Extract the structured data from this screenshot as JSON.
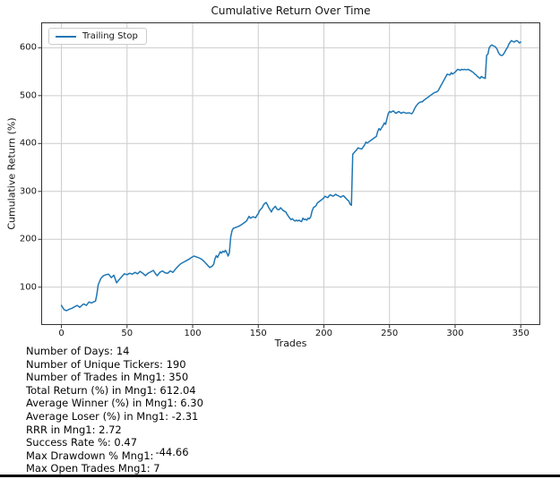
{
  "chart_data": {
    "type": "line",
    "title": "Cumulative Return Over Time",
    "xlabel": "Trades",
    "ylabel": "Cumulative Return (%)",
    "grid": true,
    "legend": {
      "position": "upper-left",
      "entries": [
        {
          "label": "Trailing Stop",
          "color": "#1f77b4"
        }
      ]
    },
    "x_ticks": [
      0,
      50,
      100,
      150,
      200,
      250,
      300,
      350
    ],
    "y_ticks": [
      100,
      200,
      300,
      400,
      500,
      600
    ],
    "xlim": [
      -15.4,
      364.9
    ],
    "ylim": [
      21,
      653
    ],
    "series": [
      {
        "name": "Trailing Stop",
        "color": "#1f77b4",
        "points": [
          [
            0,
            62
          ],
          [
            2,
            53
          ],
          [
            4,
            51
          ],
          [
            6,
            54
          ],
          [
            8,
            56
          ],
          [
            10,
            59
          ],
          [
            12,
            62
          ],
          [
            14,
            58
          ],
          [
            16,
            63
          ],
          [
            17,
            65
          ],
          [
            19,
            62
          ],
          [
            21,
            69
          ],
          [
            23,
            67
          ],
          [
            25,
            70
          ],
          [
            26,
            71
          ],
          [
            27,
            85
          ],
          [
            28,
            105
          ],
          [
            30,
            118
          ],
          [
            32,
            124
          ],
          [
            34,
            126
          ],
          [
            36,
            127
          ],
          [
            38,
            120
          ],
          [
            40,
            125
          ],
          [
            42,
            109
          ],
          [
            44,
            116
          ],
          [
            46,
            122
          ],
          [
            48,
            128
          ],
          [
            50,
            126
          ],
          [
            52,
            129
          ],
          [
            54,
            127
          ],
          [
            56,
            131
          ],
          [
            58,
            128
          ],
          [
            60,
            133
          ],
          [
            62,
            129
          ],
          [
            64,
            124
          ],
          [
            66,
            129
          ],
          [
            68,
            132
          ],
          [
            70,
            135
          ],
          [
            72,
            127
          ],
          [
            73,
            124
          ],
          [
            75,
            131
          ],
          [
            77,
            134
          ],
          [
            79,
            130
          ],
          [
            81,
            129
          ],
          [
            83,
            134
          ],
          [
            85,
            131
          ],
          [
            87,
            138
          ],
          [
            89,
            144
          ],
          [
            91,
            149
          ],
          [
            93,
            152
          ],
          [
            95,
            155
          ],
          [
            97,
            158
          ],
          [
            99,
            162
          ],
          [
            101,
            165
          ],
          [
            103,
            163
          ],
          [
            105,
            161
          ],
          [
            107,
            158
          ],
          [
            109,
            153
          ],
          [
            111,
            147
          ],
          [
            113,
            141
          ],
          [
            115,
            144
          ],
          [
            116,
            148
          ],
          [
            117,
            159
          ],
          [
            118,
            166
          ],
          [
            119,
            162
          ],
          [
            120,
            168
          ],
          [
            121,
            174
          ],
          [
            122,
            171
          ],
          [
            123,
            175
          ],
          [
            124,
            173
          ],
          [
            125,
            177
          ],
          [
            126,
            172
          ],
          [
            127,
            165
          ],
          [
            128,
            172
          ],
          [
            129,
            205
          ],
          [
            130,
            218
          ],
          [
            131,
            223
          ],
          [
            133,
            225
          ],
          [
            135,
            227
          ],
          [
            137,
            230
          ],
          [
            139,
            234
          ],
          [
            141,
            238
          ],
          [
            143,
            248
          ],
          [
            144,
            244
          ],
          [
            146,
            247
          ],
          [
            148,
            245
          ],
          [
            149,
            250
          ],
          [
            150,
            254
          ],
          [
            151,
            260
          ],
          [
            152,
            263
          ],
          [
            153,
            266
          ],
          [
            154,
            272
          ],
          [
            155,
            275
          ],
          [
            156,
            277
          ],
          [
            157,
            272
          ],
          [
            158,
            266
          ],
          [
            159,
            262
          ],
          [
            160,
            257
          ],
          [
            161,
            263
          ],
          [
            162,
            266
          ],
          [
            163,
            269
          ],
          [
            164,
            264
          ],
          [
            165,
            262
          ],
          [
            166,
            262
          ],
          [
            167,
            266
          ],
          [
            168,
            263
          ],
          [
            169,
            260
          ],
          [
            171,
            257
          ],
          [
            172,
            252
          ],
          [
            173,
            248
          ],
          [
            174,
            244
          ],
          [
            175,
            241
          ],
          [
            176,
            243
          ],
          [
            177,
            240
          ],
          [
            178,
            238
          ],
          [
            179,
            240
          ],
          [
            180,
            238
          ],
          [
            181,
            240
          ],
          [
            182,
            238
          ],
          [
            183,
            237
          ],
          [
            184,
            244
          ],
          [
            185,
            241
          ],
          [
            186,
            242
          ],
          [
            187,
            240
          ],
          [
            188,
            244
          ],
          [
            189,
            243
          ],
          [
            190,
            247
          ],
          [
            191,
            259
          ],
          [
            192,
            266
          ],
          [
            193,
            268
          ],
          [
            194,
            270
          ],
          [
            195,
            276
          ],
          [
            196,
            278
          ],
          [
            197,
            280
          ],
          [
            198,
            282
          ],
          [
            199,
            284
          ],
          [
            200,
            287
          ],
          [
            201,
            290
          ],
          [
            202,
            288
          ],
          [
            203,
            287
          ],
          [
            204,
            291
          ],
          [
            205,
            293
          ],
          [
            206,
            291
          ],
          [
            207,
            290
          ],
          [
            208,
            292
          ],
          [
            209,
            294
          ],
          [
            210,
            292
          ],
          [
            211,
            291
          ],
          [
            212,
            289
          ],
          [
            213,
            288
          ],
          [
            214,
            290
          ],
          [
            215,
            291
          ],
          [
            216,
            288
          ],
          [
            217,
            285
          ],
          [
            218,
            282
          ],
          [
            219,
            280
          ],
          [
            220,
            273
          ],
          [
            221,
            271
          ],
          [
            222,
            378
          ],
          [
            223,
            381
          ],
          [
            224,
            384
          ],
          [
            225,
            387
          ],
          [
            226,
            391
          ],
          [
            227,
            390
          ],
          [
            228,
            389
          ],
          [
            229,
            389
          ],
          [
            230,
            393
          ],
          [
            231,
            397
          ],
          [
            232,
            403
          ],
          [
            233,
            401
          ],
          [
            234,
            403
          ],
          [
            235,
            405
          ],
          [
            236,
            407
          ],
          [
            237,
            409
          ],
          [
            238,
            411
          ],
          [
            239,
            413
          ],
          [
            240,
            415
          ],
          [
            241,
            425
          ],
          [
            242,
            431
          ],
          [
            243,
            428
          ],
          [
            244,
            433
          ],
          [
            245,
            437
          ],
          [
            246,
            443
          ],
          [
            247,
            440
          ],
          [
            248,
            451
          ],
          [
            249,
            462
          ],
          [
            250,
            467
          ],
          [
            251,
            465
          ],
          [
            252,
            467
          ],
          [
            253,
            468
          ],
          [
            254,
            465
          ],
          [
            255,
            463
          ],
          [
            256,
            465
          ],
          [
            257,
            467
          ],
          [
            258,
            465
          ],
          [
            259,
            463
          ],
          [
            260,
            465
          ],
          [
            261,
            465
          ],
          [
            262,
            464
          ],
          [
            263,
            463
          ],
          [
            264,
            464
          ],
          [
            265,
            464
          ],
          [
            266,
            463
          ],
          [
            267,
            462
          ],
          [
            268,
            466
          ],
          [
            269,
            472
          ],
          [
            270,
            477
          ],
          [
            271,
            481
          ],
          [
            272,
            484
          ],
          [
            273,
            486
          ],
          [
            274,
            487
          ],
          [
            275,
            487
          ],
          [
            276,
            490
          ],
          [
            277,
            492
          ],
          [
            278,
            494
          ],
          [
            279,
            496
          ],
          [
            280,
            498
          ],
          [
            281,
            500
          ],
          [
            282,
            502
          ],
          [
            283,
            504
          ],
          [
            284,
            506
          ],
          [
            285,
            507
          ],
          [
            286,
            508
          ],
          [
            287,
            510
          ],
          [
            288,
            515
          ],
          [
            289,
            520
          ],
          [
            290,
            525
          ],
          [
            291,
            530
          ],
          [
            292,
            535
          ],
          [
            293,
            540
          ],
          [
            294,
            545
          ],
          [
            295,
            544
          ],
          [
            296,
            543
          ],
          [
            297,
            548
          ],
          [
            298,
            545
          ],
          [
            299,
            547
          ],
          [
            300,
            549
          ],
          [
            301,
            552
          ],
          [
            302,
            555
          ],
          [
            303,
            554
          ],
          [
            304,
            553
          ],
          [
            305,
            555
          ],
          [
            306,
            554
          ],
          [
            307,
            555
          ],
          [
            308,
            554
          ],
          [
            309,
            554
          ],
          [
            310,
            555
          ],
          [
            311,
            553
          ],
          [
            312,
            552
          ],
          [
            313,
            550
          ],
          [
            314,
            548
          ],
          [
            315,
            545
          ],
          [
            316,
            543
          ],
          [
            317,
            540
          ],
          [
            318,
            538
          ],
          [
            319,
            536
          ],
          [
            320,
            540
          ],
          [
            321,
            538
          ],
          [
            322,
            537
          ],
          [
            323,
            536
          ],
          [
            324,
            584
          ],
          [
            325,
            587
          ],
          [
            326,
            600
          ],
          [
            327,
            604
          ],
          [
            328,
            606
          ],
          [
            329,
            604
          ],
          [
            330,
            603
          ],
          [
            331,
            601
          ],
          [
            332,
            597
          ],
          [
            333,
            590
          ],
          [
            334,
            586
          ],
          [
            335,
            584
          ],
          [
            336,
            584
          ],
          [
            337,
            587
          ],
          [
            338,
            592
          ],
          [
            339,
            597
          ],
          [
            340,
            601
          ],
          [
            341,
            608
          ],
          [
            342,
            612
          ],
          [
            343,
            615
          ],
          [
            344,
            613
          ],
          [
            345,
            612
          ],
          [
            346,
            614
          ],
          [
            347,
            615
          ],
          [
            348,
            613
          ],
          [
            349,
            610
          ],
          [
            350,
            612
          ]
        ]
      }
    ]
  },
  "stats": {
    "lines": [
      {
        "text": "Number of Days: 14"
      },
      {
        "text": "Number of Unique Tickers: 190"
      },
      {
        "text": "Number of Trades in Mng1: 350"
      },
      {
        "text": "Total Return (%) in Mng1: 612.04"
      },
      {
        "text": "Average Winner (%) in Mng1: 6.30"
      },
      {
        "text": "Average Loser (%) in Mng1: -2.31"
      },
      {
        "text": "RRR in Mng1: 2.72"
      },
      {
        "text": "Success Rate %: 0.47"
      },
      {
        "text": "Max Drawdown % Mng1:",
        "raised_value": "-44.66"
      },
      {
        "text": "Max Open Trades Mng1: 7"
      }
    ]
  },
  "colors": {
    "line": "#1f77b4",
    "grid": "#cccccc",
    "spine": "#333333",
    "text": "#151515",
    "legend_border": "#cccccc",
    "bottom_bar": "#000000"
  }
}
